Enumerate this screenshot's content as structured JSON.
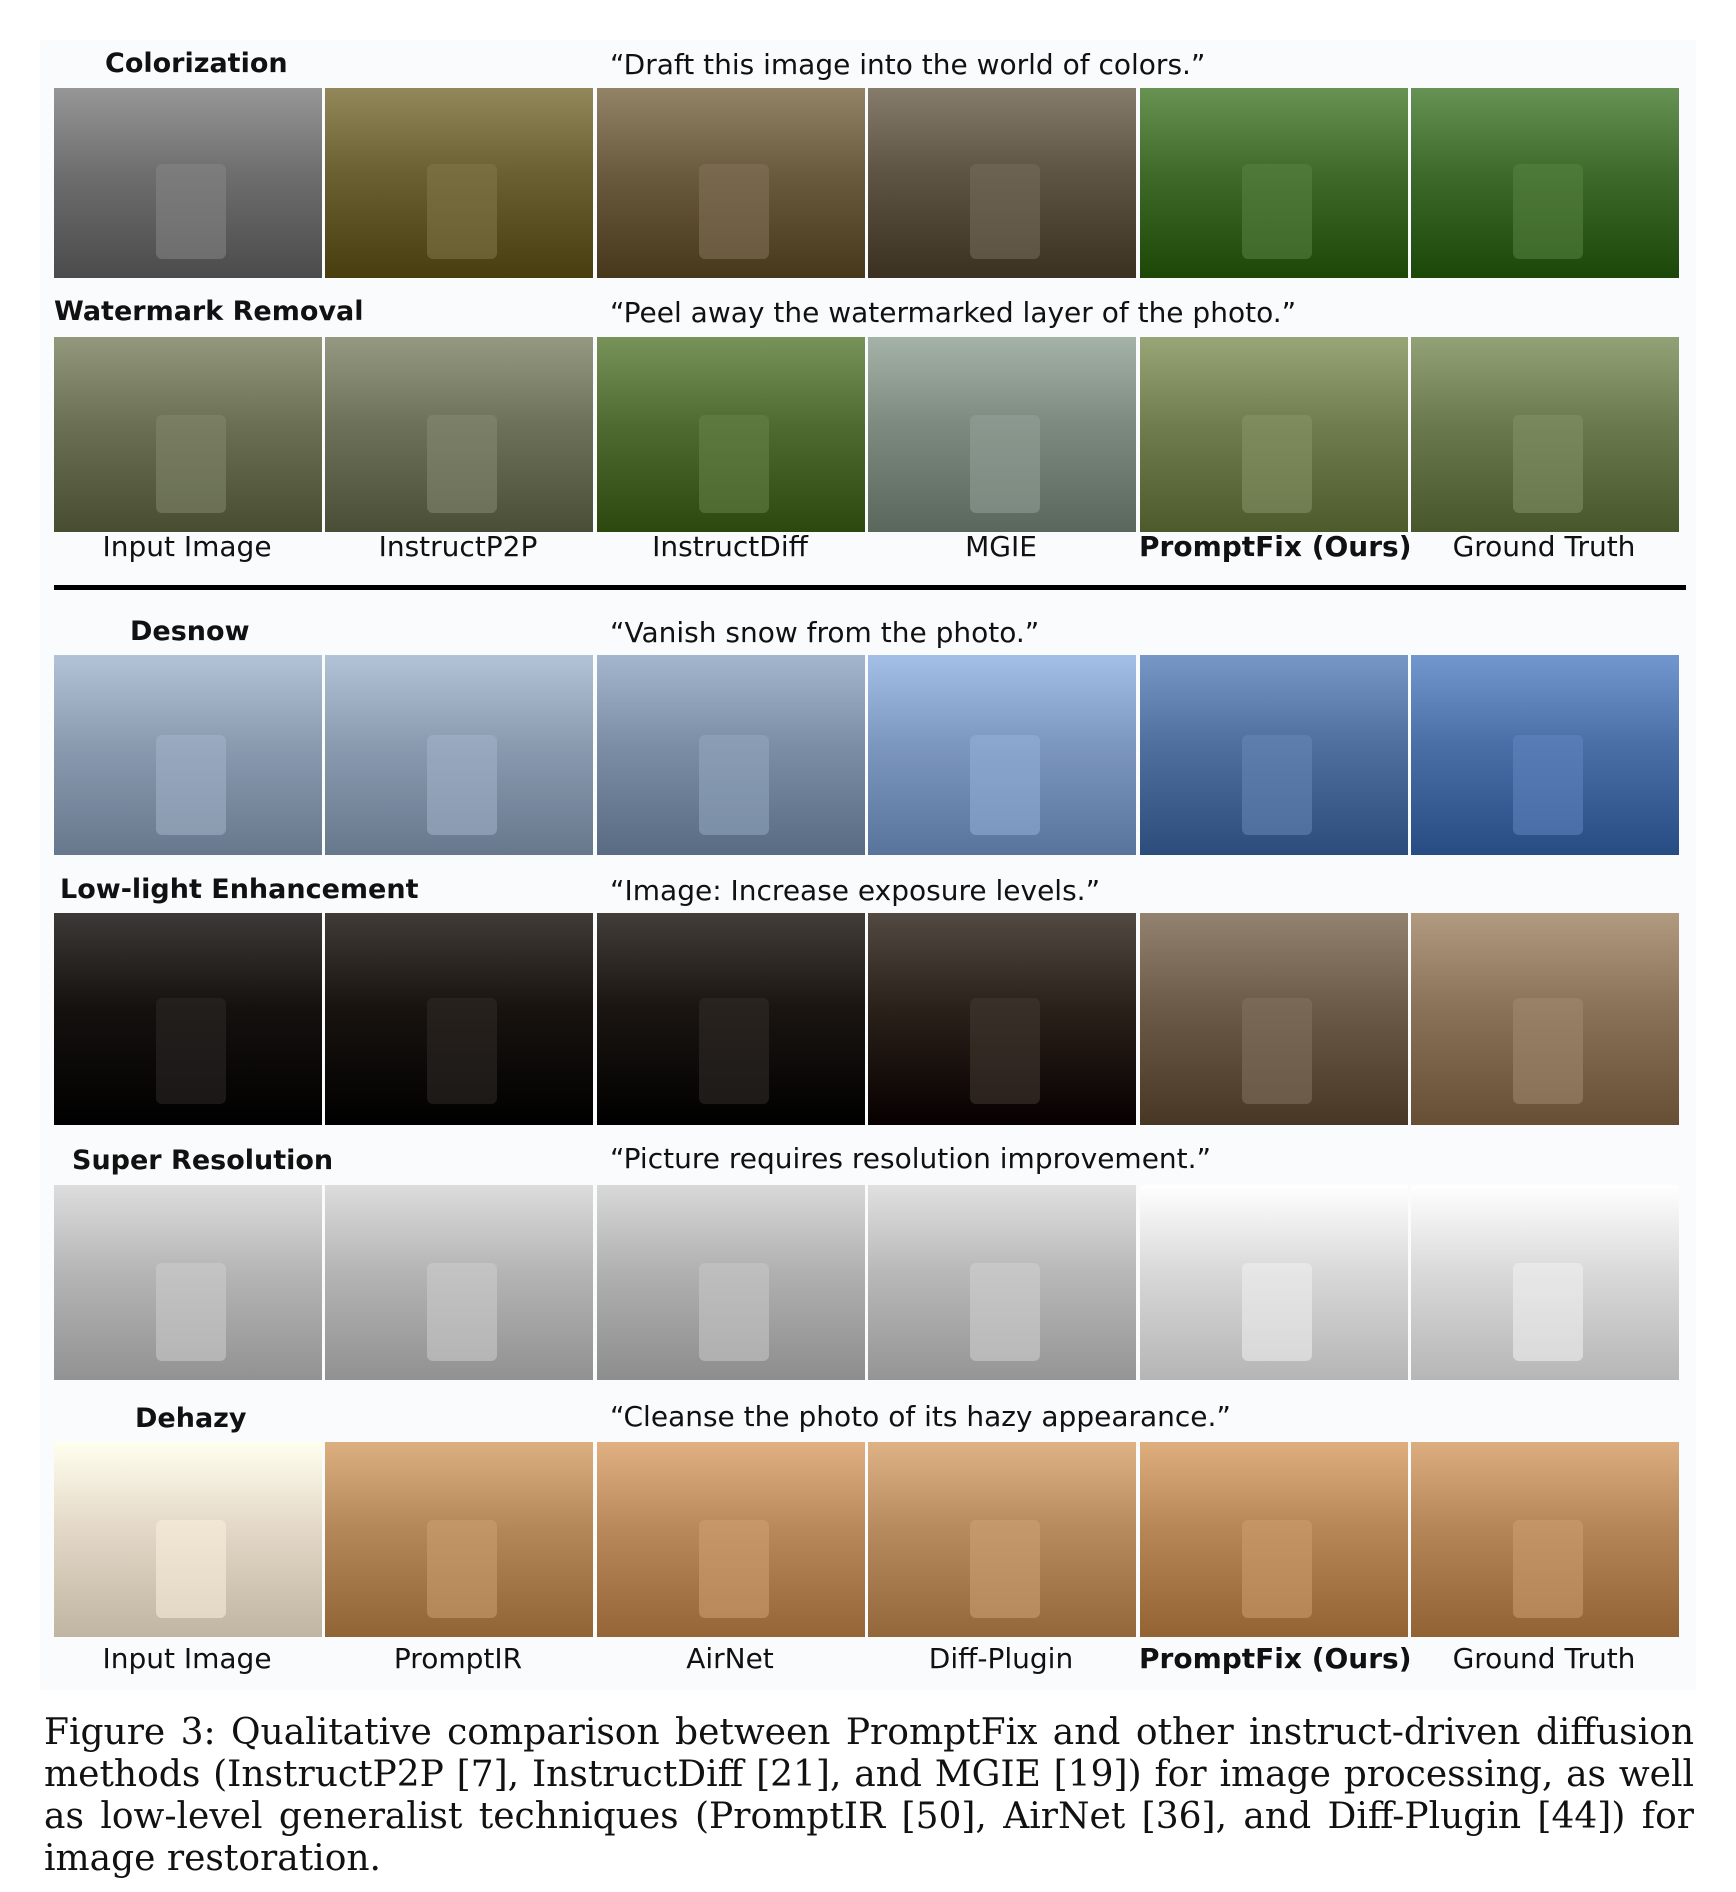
{
  "sections": [
    {
      "id": "colorization",
      "label": "Colorization",
      "prompt": "“Draft this image into the world of colors.”"
    },
    {
      "id": "watermark",
      "label": "Watermark Removal",
      "prompt": "“Peel away the watermarked layer of the photo.”"
    },
    {
      "id": "desnow",
      "label": "Desnow",
      "prompt": "“Vanish snow from the photo.”"
    },
    {
      "id": "lowlight",
      "label": "Low-light Enhancement",
      "prompt": "“Image: Increase exposure levels.”"
    },
    {
      "id": "superres",
      "label": "Super Resolution",
      "prompt": "“Picture requires resolution improvement.”"
    },
    {
      "id": "dehaze",
      "label": "Dehazy",
      "prompt": "“Cleanse the photo of its hazy appearance.”"
    }
  ],
  "methods_top": [
    "Input Image",
    "InstructP2P",
    "InstructDiff",
    "MGIE",
    "PromptFix (Ours)",
    "Ground Truth"
  ],
  "methods_bottom": [
    "Input Image",
    "PromptIR",
    "AirNet",
    "Diff-Plugin",
    "PromptFix (Ours)",
    "Ground Truth"
  ],
  "caption": "Figure 3: Qualitative comparison between PromptFix and other instruct-driven diffusion methods (InstructP2P [7], InstructDiff [21], and MGIE [19]) for image processing, as well as low-level generalist techniques (PromptIR [50], AirNet [36], and Diff-Plugin [44]) for image restoration.",
  "colors": {
    "colorization": [
      "#6e6e6e",
      "#6b6032",
      "#6a5a3e",
      "#5e5443",
      "#3f6a2a",
      "#3e6a2b"
    ],
    "watermark": [
      "#6b7055",
      "#6d7159",
      "#4f6b31",
      "#7c8a80",
      "#6f7d4f",
      "#6b7a4e"
    ],
    "desnow": [
      "#8a9bb0",
      "#8a9bb0",
      "#7b8ea6",
      "#7c97bf",
      "#4f6f9f",
      "#4a6ea6"
    ],
    "lowlight": [
      "#15110f",
      "#18130f",
      "#1a1511",
      "#2a211a",
      "#6b5a48",
      "#8a7258"
    ],
    "superres": [
      "#b5b5b5",
      "#b4b4b4",
      "#b0b0b0",
      "#b8b8b8",
      "#d8d8d8",
      "#d9d9d9"
    ],
    "dehaze": [
      "#e3d7c6",
      "#b48758",
      "#b8885a",
      "#b78a5d",
      "#b68656",
      "#b48657"
    ]
  }
}
